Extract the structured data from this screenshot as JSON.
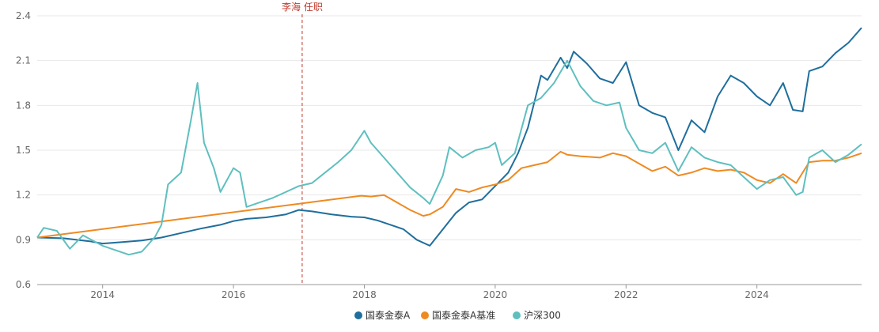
{
  "chart_data": {
    "type": "line",
    "title": "",
    "xlabel": "",
    "ylabel": "",
    "xlim": [
      2013.0,
      2025.6
    ],
    "ylim": [
      0.6,
      2.4
    ],
    "y_ticks": [
      0.6,
      0.9,
      1.2,
      1.5,
      1.8,
      2.1,
      2.4
    ],
    "y_tick_labels": [
      "0.6",
      "0.9",
      "1.2",
      "1.5",
      "1.8",
      "2.1",
      "2.4"
    ],
    "x_ticks": [
      2014,
      2016,
      2018,
      2020,
      2022,
      2024
    ],
    "x_tick_labels": [
      "2014",
      "2016",
      "2018",
      "2020",
      "2022",
      "2024"
    ],
    "grid": true,
    "legend_position": "bottom-center",
    "annotation": {
      "x": 2017.05,
      "label": "李海 任职",
      "color": "#c0392b"
    },
    "series": [
      {
        "name": "国泰金泰A",
        "color": "#1f6e9c",
        "points": [
          [
            2013.0,
            0.915
          ],
          [
            2013.4,
            0.91
          ],
          [
            2013.8,
            0.89
          ],
          [
            2014.0,
            0.875
          ],
          [
            2014.3,
            0.885
          ],
          [
            2014.6,
            0.895
          ],
          [
            2014.9,
            0.915
          ],
          [
            2015.2,
            0.945
          ],
          [
            2015.5,
            0.975
          ],
          [
            2015.8,
            1.0
          ],
          [
            2016.0,
            1.025
          ],
          [
            2016.2,
            1.04
          ],
          [
            2016.5,
            1.05
          ],
          [
            2016.8,
            1.07
          ],
          [
            2017.0,
            1.1
          ],
          [
            2017.2,
            1.09
          ],
          [
            2017.5,
            1.07
          ],
          [
            2017.8,
            1.055
          ],
          [
            2018.0,
            1.05
          ],
          [
            2018.2,
            1.03
          ],
          [
            2018.4,
            1.0
          ],
          [
            2018.6,
            0.97
          ],
          [
            2018.8,
            0.9
          ],
          [
            2019.0,
            0.86
          ],
          [
            2019.2,
            0.97
          ],
          [
            2019.4,
            1.08
          ],
          [
            2019.6,
            1.15
          ],
          [
            2019.8,
            1.17
          ],
          [
            2020.0,
            1.26
          ],
          [
            2020.2,
            1.35
          ],
          [
            2020.35,
            1.48
          ],
          [
            2020.5,
            1.65
          ],
          [
            2020.7,
            2.0
          ],
          [
            2020.8,
            1.97
          ],
          [
            2021.0,
            2.12
          ],
          [
            2021.1,
            2.05
          ],
          [
            2021.2,
            2.16
          ],
          [
            2021.4,
            2.08
          ],
          [
            2021.6,
            1.98
          ],
          [
            2021.8,
            1.95
          ],
          [
            2022.0,
            2.09
          ],
          [
            2022.2,
            1.8
          ],
          [
            2022.4,
            1.75
          ],
          [
            2022.6,
            1.72
          ],
          [
            2022.8,
            1.5
          ],
          [
            2023.0,
            1.7
          ],
          [
            2023.2,
            1.62
          ],
          [
            2023.4,
            1.86
          ],
          [
            2023.6,
            2.0
          ],
          [
            2023.8,
            1.95
          ],
          [
            2024.0,
            1.86
          ],
          [
            2024.2,
            1.8
          ],
          [
            2024.4,
            1.95
          ],
          [
            2024.55,
            1.77
          ],
          [
            2024.7,
            1.76
          ],
          [
            2024.8,
            2.03
          ],
          [
            2025.0,
            2.06
          ],
          [
            2025.2,
            2.15
          ],
          [
            2025.4,
            2.22
          ],
          [
            2025.6,
            2.32
          ]
        ]
      },
      {
        "name": "国泰金泰A基准",
        "color": "#ee8a22",
        "points": [
          [
            2013.0,
            0.915
          ],
          [
            2017.95,
            1.195
          ],
          [
            2018.1,
            1.19
          ],
          [
            2018.3,
            1.2
          ],
          [
            2018.5,
            1.15
          ],
          [
            2018.7,
            1.1
          ],
          [
            2018.9,
            1.06
          ],
          [
            2019.0,
            1.07
          ],
          [
            2019.2,
            1.12
          ],
          [
            2019.4,
            1.24
          ],
          [
            2019.6,
            1.22
          ],
          [
            2019.8,
            1.25
          ],
          [
            2020.0,
            1.27
          ],
          [
            2020.2,
            1.3
          ],
          [
            2020.4,
            1.38
          ],
          [
            2020.6,
            1.4
          ],
          [
            2020.8,
            1.42
          ],
          [
            2021.0,
            1.49
          ],
          [
            2021.1,
            1.47
          ],
          [
            2021.3,
            1.46
          ],
          [
            2021.6,
            1.45
          ],
          [
            2021.8,
            1.48
          ],
          [
            2022.0,
            1.46
          ],
          [
            2022.2,
            1.41
          ],
          [
            2022.4,
            1.36
          ],
          [
            2022.6,
            1.39
          ],
          [
            2022.8,
            1.33
          ],
          [
            2023.0,
            1.35
          ],
          [
            2023.2,
            1.38
          ],
          [
            2023.4,
            1.36
          ],
          [
            2023.6,
            1.37
          ],
          [
            2023.8,
            1.35
          ],
          [
            2024.0,
            1.3
          ],
          [
            2024.2,
            1.28
          ],
          [
            2024.4,
            1.34
          ],
          [
            2024.6,
            1.28
          ],
          [
            2024.8,
            1.42
          ],
          [
            2025.0,
            1.43
          ],
          [
            2025.2,
            1.43
          ],
          [
            2025.4,
            1.45
          ],
          [
            2025.6,
            1.48
          ]
        ]
      },
      {
        "name": "沪深300",
        "color": "#5fbfbf",
        "points": [
          [
            2013.0,
            0.915
          ],
          [
            2013.1,
            0.98
          ],
          [
            2013.3,
            0.96
          ],
          [
            2013.5,
            0.84
          ],
          [
            2013.7,
            0.93
          ],
          [
            2014.0,
            0.86
          ],
          [
            2014.2,
            0.83
          ],
          [
            2014.4,
            0.8
          ],
          [
            2014.6,
            0.82
          ],
          [
            2014.8,
            0.92
          ],
          [
            2014.9,
            1.0
          ],
          [
            2015.0,
            1.27
          ],
          [
            2015.2,
            1.35
          ],
          [
            2015.35,
            1.7
          ],
          [
            2015.45,
            1.95
          ],
          [
            2015.55,
            1.55
          ],
          [
            2015.7,
            1.38
          ],
          [
            2015.8,
            1.22
          ],
          [
            2016.0,
            1.38
          ],
          [
            2016.1,
            1.35
          ],
          [
            2016.2,
            1.12
          ],
          [
            2016.4,
            1.15
          ],
          [
            2016.6,
            1.18
          ],
          [
            2016.8,
            1.22
          ],
          [
            2017.0,
            1.26
          ],
          [
            2017.2,
            1.28
          ],
          [
            2017.4,
            1.35
          ],
          [
            2017.6,
            1.42
          ],
          [
            2017.8,
            1.5
          ],
          [
            2018.0,
            1.63
          ],
          [
            2018.1,
            1.55
          ],
          [
            2018.3,
            1.45
          ],
          [
            2018.5,
            1.35
          ],
          [
            2018.7,
            1.25
          ],
          [
            2018.9,
            1.18
          ],
          [
            2019.0,
            1.14
          ],
          [
            2019.2,
            1.33
          ],
          [
            2019.3,
            1.52
          ],
          [
            2019.5,
            1.45
          ],
          [
            2019.7,
            1.5
          ],
          [
            2019.9,
            1.52
          ],
          [
            2020.0,
            1.55
          ],
          [
            2020.1,
            1.4
          ],
          [
            2020.3,
            1.48
          ],
          [
            2020.5,
            1.8
          ],
          [
            2020.7,
            1.85
          ],
          [
            2020.9,
            1.95
          ],
          [
            2021.1,
            2.1
          ],
          [
            2021.3,
            1.93
          ],
          [
            2021.5,
            1.83
          ],
          [
            2021.7,
            1.8
          ],
          [
            2021.9,
            1.82
          ],
          [
            2022.0,
            1.65
          ],
          [
            2022.2,
            1.5
          ],
          [
            2022.4,
            1.48
          ],
          [
            2022.6,
            1.55
          ],
          [
            2022.8,
            1.36
          ],
          [
            2023.0,
            1.52
          ],
          [
            2023.2,
            1.45
          ],
          [
            2023.4,
            1.42
          ],
          [
            2023.6,
            1.4
          ],
          [
            2023.8,
            1.32
          ],
          [
            2024.0,
            1.24
          ],
          [
            2024.2,
            1.3
          ],
          [
            2024.4,
            1.32
          ],
          [
            2024.6,
            1.2
          ],
          [
            2024.7,
            1.22
          ],
          [
            2024.8,
            1.45
          ],
          [
            2025.0,
            1.5
          ],
          [
            2025.2,
            1.42
          ],
          [
            2025.4,
            1.47
          ],
          [
            2025.6,
            1.54
          ]
        ]
      }
    ]
  }
}
